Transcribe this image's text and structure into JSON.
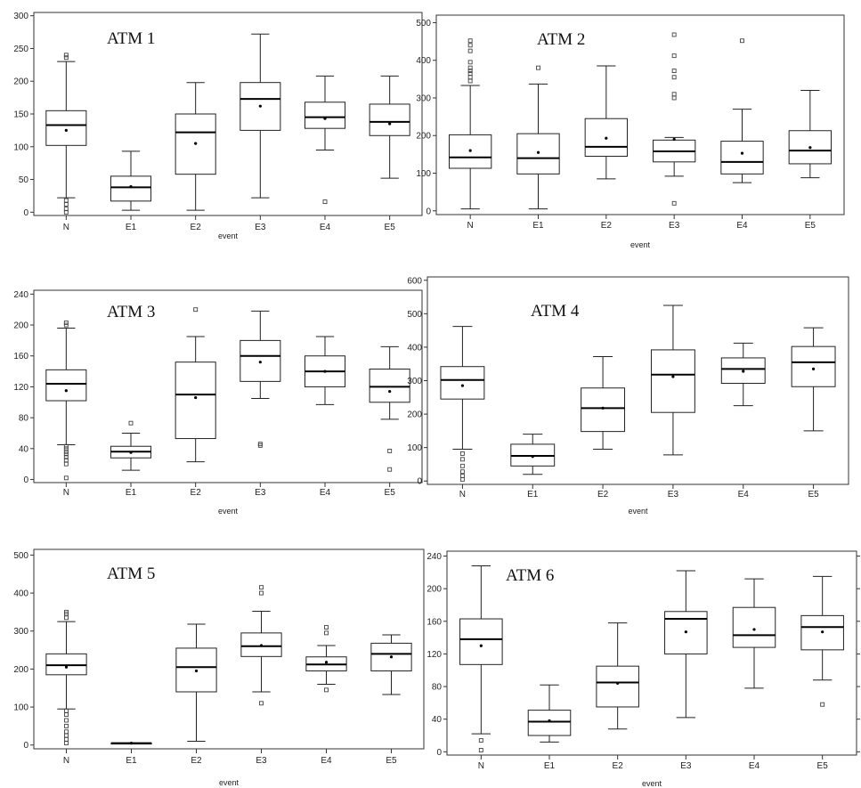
{
  "chart_data": [
    {
      "type": "box",
      "title": "ATM 1",
      "xlabel": "event",
      "categories": [
        "N",
        "E1",
        "E2",
        "E3",
        "E4",
        "E5"
      ],
      "yticks": [
        0,
        50,
        100,
        150,
        200,
        250,
        300
      ],
      "ylim": [
        -5,
        305
      ],
      "boxes": [
        {
          "lw": 22,
          "q1": 102,
          "med": 133,
          "q3": 155,
          "uw": 230,
          "mean": 125,
          "out": [
            0,
            5,
            12,
            18,
            236,
            240
          ]
        },
        {
          "lw": 3,
          "q1": 17,
          "med": 38,
          "q3": 55,
          "uw": 93,
          "mean": 39,
          "out": []
        },
        {
          "lw": 3,
          "q1": 58,
          "med": 122,
          "q3": 150,
          "uw": 198,
          "mean": 105,
          "out": []
        },
        {
          "lw": 22,
          "q1": 125,
          "med": 173,
          "q3": 198,
          "uw": 272,
          "mean": 162,
          "out": []
        },
        {
          "lw": 95,
          "q1": 128,
          "med": 145,
          "q3": 168,
          "uw": 208,
          "mean": 143,
          "out": [
            16
          ]
        },
        {
          "lw": 52,
          "q1": 117,
          "med": 138,
          "q3": 165,
          "uw": 208,
          "mean": 135,
          "out": []
        }
      ]
    },
    {
      "type": "box",
      "title": "ATM 2",
      "xlabel": "event",
      "categories": [
        "N",
        "E1",
        "E2",
        "E3",
        "E4",
        "E5"
      ],
      "yticks": [
        0,
        100,
        200,
        300,
        400,
        500
      ],
      "ylim": [
        -10,
        520
      ],
      "boxes": [
        {
          "lw": 5,
          "q1": 113,
          "med": 142,
          "q3": 202,
          "uw": 333,
          "mean": 160,
          "out": [
            345,
            355,
            365,
            372,
            380,
            395,
            425,
            440,
            452
          ]
        },
        {
          "lw": 5,
          "q1": 98,
          "med": 140,
          "q3": 205,
          "uw": 337,
          "mean": 155,
          "out": [
            380
          ]
        },
        {
          "lw": 85,
          "q1": 145,
          "med": 170,
          "q3": 245,
          "uw": 385,
          "mean": 193,
          "out": []
        },
        {
          "lw": 92,
          "q1": 130,
          "med": 158,
          "q3": 188,
          "uw": 195,
          "mean": 190,
          "out": [
            20,
            300,
            310,
            355,
            372,
            412,
            468
          ]
        },
        {
          "lw": 75,
          "q1": 98,
          "med": 130,
          "q3": 185,
          "uw": 270,
          "mean": 153,
          "out": [
            452
          ]
        },
        {
          "lw": 88,
          "q1": 125,
          "med": 160,
          "q3": 213,
          "uw": 320,
          "mean": 168,
          "out": []
        }
      ]
    },
    {
      "type": "box",
      "title": "ATM 3",
      "xlabel": "event",
      "categories": [
        "N",
        "E1",
        "E2",
        "E3",
        "E4",
        "E5"
      ],
      "yticks": [
        0,
        40,
        80,
        120,
        160,
        200,
        240
      ],
      "ylim": [
        -4,
        245
      ],
      "boxes": [
        {
          "lw": 45,
          "q1": 102,
          "med": 124,
          "q3": 142,
          "uw": 196,
          "mean": 115,
          "out": [
            2,
            20,
            25,
            29,
            33,
            36,
            40,
            43,
            200,
            203
          ]
        },
        {
          "lw": 12,
          "q1": 28,
          "med": 36,
          "q3": 43,
          "uw": 60,
          "mean": 35,
          "out": [
            73
          ]
        },
        {
          "lw": 23,
          "q1": 53,
          "med": 110,
          "q3": 152,
          "uw": 185,
          "mean": 106,
          "out": [
            220
          ]
        },
        {
          "lw": 105,
          "q1": 127,
          "med": 160,
          "q3": 180,
          "uw": 218,
          "mean": 152,
          "out": [
            44,
            46
          ]
        },
        {
          "lw": 97,
          "q1": 120,
          "med": 140,
          "q3": 160,
          "uw": 185,
          "mean": 140,
          "out": []
        },
        {
          "lw": 78,
          "q1": 100,
          "med": 120,
          "q3": 143,
          "uw": 172,
          "mean": 114,
          "out": [
            13,
            37
          ]
        }
      ]
    },
    {
      "type": "box",
      "title": "ATM 4",
      "xlabel": "event",
      "categories": [
        "N",
        "E1",
        "E2",
        "E3",
        "E4",
        "E5"
      ],
      "yticks": [
        0,
        100,
        200,
        300,
        400,
        500,
        600
      ],
      "ylim": [
        -10,
        610
      ],
      "boxes": [
        {
          "lw": 95,
          "q1": 245,
          "med": 302,
          "q3": 342,
          "uw": 462,
          "mean": 285,
          "out": [
            5,
            15,
            28,
            45,
            65,
            82
          ]
        },
        {
          "lw": 20,
          "q1": 45,
          "med": 75,
          "q3": 110,
          "uw": 140,
          "mean": 73,
          "out": []
        },
        {
          "lw": 95,
          "q1": 148,
          "med": 218,
          "q3": 278,
          "uw": 372,
          "mean": 218,
          "out": []
        },
        {
          "lw": 78,
          "q1": 205,
          "med": 318,
          "q3": 392,
          "uw": 525,
          "mean": 312,
          "out": []
        },
        {
          "lw": 225,
          "q1": 292,
          "med": 335,
          "q3": 368,
          "uw": 412,
          "mean": 328,
          "out": []
        },
        {
          "lw": 150,
          "q1": 282,
          "med": 355,
          "q3": 402,
          "uw": 458,
          "mean": 335,
          "out": []
        }
      ]
    },
    {
      "type": "box",
      "title": "ATM 5",
      "xlabel": "event",
      "categories": [
        "N",
        "E1",
        "E2",
        "E3",
        "E4",
        "E5"
      ],
      "yticks": [
        0,
        100,
        200,
        300,
        400,
        500
      ],
      "ylim": [
        -10,
        515
      ],
      "boxes": [
        {
          "lw": 95,
          "q1": 185,
          "med": 210,
          "q3": 240,
          "uw": 325,
          "mean": 205,
          "out": [
            5,
            15,
            25,
            35,
            50,
            65,
            80,
            90,
            335,
            345,
            350
          ]
        },
        {
          "lw": 5,
          "q1": 5,
          "med": 5,
          "q3": 5,
          "uw": 5,
          "mean": 5,
          "out": []
        },
        {
          "lw": 10,
          "q1": 140,
          "med": 205,
          "q3": 255,
          "uw": 318,
          "mean": 195,
          "out": []
        },
        {
          "lw": 140,
          "q1": 233,
          "med": 260,
          "q3": 295,
          "uw": 352,
          "mean": 262,
          "out": [
            110,
            400,
            415
          ]
        },
        {
          "lw": 160,
          "q1": 195,
          "med": 212,
          "q3": 232,
          "uw": 262,
          "mean": 218,
          "out": [
            145,
            295,
            310
          ]
        },
        {
          "lw": 133,
          "q1": 195,
          "med": 240,
          "q3": 268,
          "uw": 290,
          "mean": 232,
          "out": []
        }
      ]
    },
    {
      "type": "box",
      "title": "ATM 6",
      "xlabel": "event",
      "categories": [
        "N",
        "E1",
        "E2",
        "E3",
        "E4",
        "E5"
      ],
      "yticks": [
        0,
        40,
        80,
        120,
        160,
        200,
        240
      ],
      "ylim": [
        -4,
        246
      ],
      "boxes": [
        {
          "lw": 22,
          "q1": 107,
          "med": 138,
          "q3": 163,
          "uw": 228,
          "mean": 130,
          "out": [
            2,
            14
          ]
        },
        {
          "lw": 12,
          "q1": 20,
          "med": 37,
          "q3": 51,
          "uw": 82,
          "mean": 38,
          "out": []
        },
        {
          "lw": 28,
          "q1": 55,
          "med": 85,
          "q3": 105,
          "uw": 158,
          "mean": 84,
          "out": []
        },
        {
          "lw": 42,
          "q1": 120,
          "med": 163,
          "q3": 172,
          "uw": 222,
          "mean": 147,
          "out": []
        },
        {
          "lw": 78,
          "q1": 128,
          "med": 143,
          "q3": 177,
          "uw": 212,
          "mean": 150,
          "out": []
        },
        {
          "lw": 88,
          "q1": 125,
          "med": 153,
          "q3": 167,
          "uw": 215,
          "mean": 147,
          "out": [
            58
          ]
        }
      ]
    }
  ]
}
